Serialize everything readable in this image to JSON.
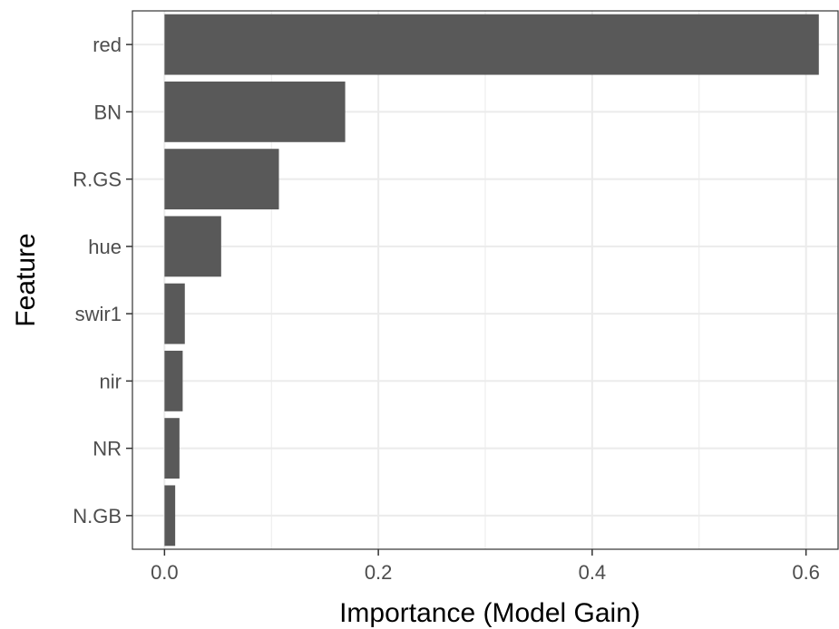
{
  "chart_data": {
    "type": "bar",
    "orientation": "horizontal",
    "title": "",
    "xlabel": "Importance (Model Gain)",
    "ylabel": "Feature",
    "categories": [
      "red",
      "BN",
      "R.GS",
      "hue",
      "swir1",
      "nir",
      "NR",
      "N.GB"
    ],
    "values": [
      0.612,
      0.169,
      0.107,
      0.053,
      0.019,
      0.017,
      0.014,
      0.01
    ],
    "xlim": [
      -0.03,
      0.63
    ],
    "xticks": [
      0.0,
      0.2,
      0.4,
      0.6
    ],
    "xtick_labels": [
      "0.0",
      "0.2",
      "0.4",
      "0.6"
    ],
    "grid": true,
    "legend": "none",
    "colors": {
      "bar": "#595959",
      "grid": "#ebebeb",
      "panel_border": "#333333",
      "tick_text": "#4d4d4d"
    }
  }
}
